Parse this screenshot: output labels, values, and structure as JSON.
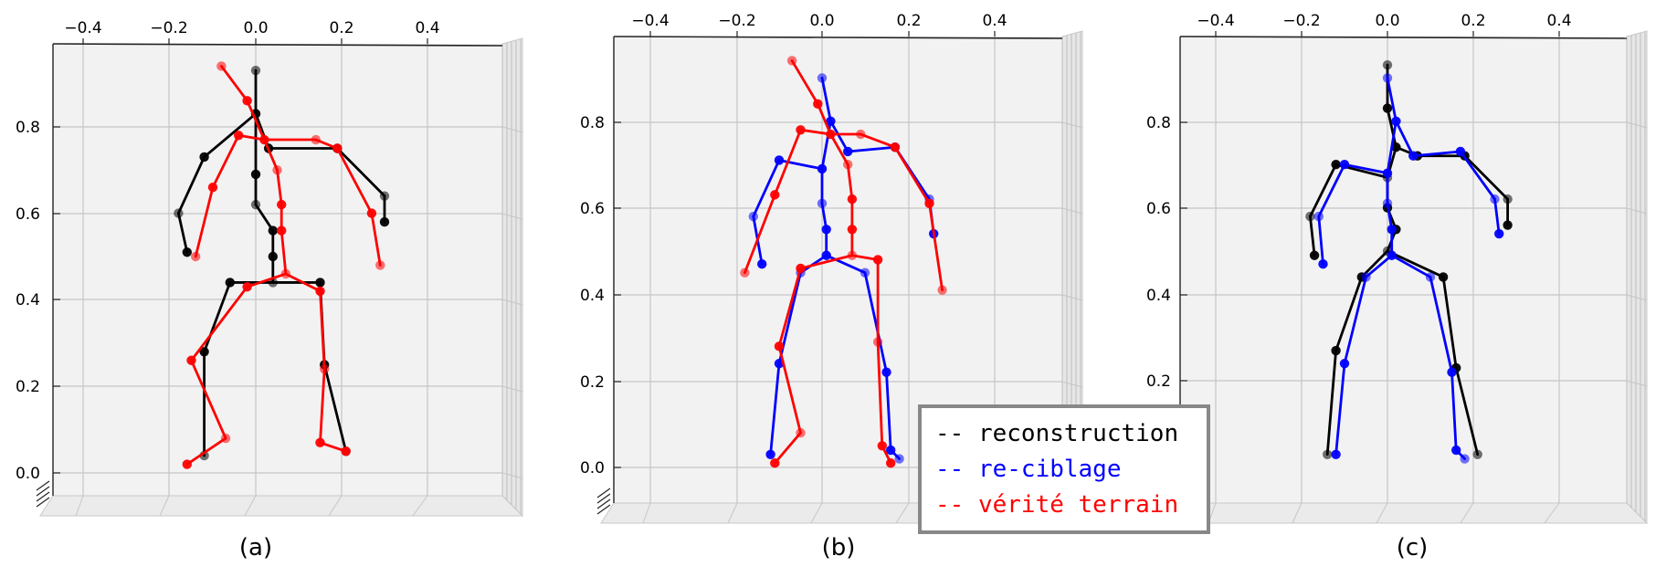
{
  "chart_data": [
    {
      "type": "scatter",
      "subtype": "3d-skeleton",
      "caption": "(a)",
      "xlim": [
        -0.5,
        0.5
      ],
      "zlim": [
        -0.05,
        0.98
      ],
      "x_ticks": [
        "−0.4",
        "−0.2",
        "0.0",
        "0.2",
        "0.4"
      ],
      "z_ticks": [
        "0.0",
        "0.2",
        "0.4",
        "0.6",
        "0.8"
      ],
      "grid": true,
      "series": [
        {
          "color": "#000000",
          "points": [
            [
              0.0,
              0.93
            ],
            [
              0.0,
              0.83
            ],
            [
              0.0,
              0.69
            ],
            [
              0.0,
              0.62
            ],
            [
              0.04,
              0.56
            ],
            [
              0.04,
              0.5
            ],
            [
              0.04,
              0.44
            ],
            [
              -0.06,
              0.44
            ],
            [
              -0.12,
              0.28
            ],
            [
              -0.12,
              0.04
            ],
            [
              0.15,
              0.44
            ],
            [
              0.16,
              0.25
            ],
            [
              0.21,
              0.05
            ],
            [
              0.03,
              0.75
            ],
            [
              0.19,
              0.75
            ],
            [
              0.3,
              0.64
            ],
            [
              0.3,
              0.58
            ],
            [
              -0.12,
              0.73
            ],
            [
              -0.18,
              0.6
            ],
            [
              -0.16,
              0.51
            ]
          ],
          "edges": [
            [
              0,
              1
            ],
            [
              1,
              2
            ],
            [
              2,
              3
            ],
            [
              3,
              4
            ],
            [
              4,
              5
            ],
            [
              5,
              6
            ],
            [
              6,
              7
            ],
            [
              7,
              8
            ],
            [
              8,
              9
            ],
            [
              6,
              10
            ],
            [
              10,
              11
            ],
            [
              11,
              12
            ],
            [
              1,
              13
            ],
            [
              13,
              14
            ],
            [
              14,
              15
            ],
            [
              15,
              16
            ],
            [
              1,
              17
            ],
            [
              17,
              18
            ],
            [
              18,
              19
            ]
          ]
        },
        {
          "color": "#ff0000",
          "points": [
            [
              -0.08,
              0.94
            ],
            [
              -0.02,
              0.86
            ],
            [
              0.02,
              0.77
            ],
            [
              0.05,
              0.7
            ],
            [
              0.06,
              0.62
            ],
            [
              0.06,
              0.56
            ],
            [
              0.07,
              0.46
            ],
            [
              -0.02,
              0.43
            ],
            [
              -0.15,
              0.26
            ],
            [
              -0.07,
              0.08
            ],
            [
              -0.16,
              0.02
            ],
            [
              0.15,
              0.42
            ],
            [
              0.16,
              0.24
            ],
            [
              0.15,
              0.07
            ],
            [
              0.21,
              0.05
            ],
            [
              0.14,
              0.77
            ],
            [
              0.19,
              0.75
            ],
            [
              0.27,
              0.6
            ],
            [
              0.29,
              0.48
            ],
            [
              -0.04,
              0.78
            ],
            [
              -0.1,
              0.66
            ],
            [
              -0.14,
              0.5
            ]
          ],
          "edges": [
            [
              0,
              1
            ],
            [
              1,
              2
            ],
            [
              2,
              3
            ],
            [
              3,
              4
            ],
            [
              4,
              5
            ],
            [
              5,
              6
            ],
            [
              6,
              7
            ],
            [
              7,
              8
            ],
            [
              8,
              9
            ],
            [
              9,
              10
            ],
            [
              6,
              11
            ],
            [
              11,
              12
            ],
            [
              12,
              13
            ],
            [
              13,
              14
            ],
            [
              2,
              15
            ],
            [
              15,
              16
            ],
            [
              16,
              17
            ],
            [
              17,
              18
            ],
            [
              2,
              19
            ],
            [
              19,
              20
            ],
            [
              20,
              21
            ]
          ]
        }
      ]
    },
    {
      "type": "scatter",
      "subtype": "3d-skeleton",
      "caption": "(b)",
      "xlim": [
        -0.5,
        0.5
      ],
      "zlim": [
        -0.05,
        0.98
      ],
      "x_ticks": [
        "−0.4",
        "−0.2",
        "0.0",
        "0.2",
        "0.4"
      ],
      "z_ticks": [
        "0.0",
        "0.2",
        "0.4",
        "0.6",
        "0.8"
      ],
      "grid": true,
      "series": [
        {
          "color": "#0000ff",
          "points": [
            [
              0.0,
              0.9
            ],
            [
              0.02,
              0.8
            ],
            [
              0.0,
              0.69
            ],
            [
              0.0,
              0.61
            ],
            [
              0.01,
              0.55
            ],
            [
              0.01,
              0.49
            ],
            [
              -0.05,
              0.45
            ],
            [
              -0.1,
              0.24
            ],
            [
              -0.12,
              0.03
            ],
            [
              0.1,
              0.45
            ],
            [
              0.15,
              0.22
            ],
            [
              0.16,
              0.04
            ],
            [
              0.18,
              0.02
            ],
            [
              0.06,
              0.73
            ],
            [
              0.17,
              0.74
            ],
            [
              0.25,
              0.62
            ],
            [
              0.26,
              0.54
            ],
            [
              -0.1,
              0.71
            ],
            [
              -0.16,
              0.58
            ],
            [
              -0.14,
              0.47
            ]
          ],
          "edges": [
            [
              0,
              1
            ],
            [
              1,
              2
            ],
            [
              2,
              3
            ],
            [
              3,
              4
            ],
            [
              4,
              5
            ],
            [
              5,
              6
            ],
            [
              6,
              7
            ],
            [
              7,
              8
            ],
            [
              5,
              9
            ],
            [
              9,
              10
            ],
            [
              10,
              11
            ],
            [
              11,
              12
            ],
            [
              1,
              13
            ],
            [
              13,
              14
            ],
            [
              14,
              15
            ],
            [
              15,
              16
            ],
            [
              2,
              17
            ],
            [
              17,
              18
            ],
            [
              18,
              19
            ]
          ]
        },
        {
          "color": "#ff0000",
          "points": [
            [
              -0.07,
              0.94
            ],
            [
              -0.01,
              0.84
            ],
            [
              0.02,
              0.77
            ],
            [
              0.06,
              0.7
            ],
            [
              0.07,
              0.62
            ],
            [
              0.07,
              0.55
            ],
            [
              0.07,
              0.49
            ],
            [
              -0.05,
              0.46
            ],
            [
              -0.1,
              0.28
            ],
            [
              -0.05,
              0.08
            ],
            [
              -0.11,
              0.01
            ],
            [
              0.13,
              0.48
            ],
            [
              0.13,
              0.29
            ],
            [
              0.14,
              0.05
            ],
            [
              0.16,
              0.01
            ],
            [
              0.09,
              0.77
            ],
            [
              0.17,
              0.74
            ],
            [
              0.25,
              0.61
            ],
            [
              0.28,
              0.41
            ],
            [
              -0.05,
              0.78
            ],
            [
              -0.11,
              0.63
            ],
            [
              -0.18,
              0.45
            ]
          ],
          "edges": [
            [
              0,
              1
            ],
            [
              1,
              2
            ],
            [
              2,
              3
            ],
            [
              3,
              4
            ],
            [
              4,
              5
            ],
            [
              5,
              6
            ],
            [
              6,
              7
            ],
            [
              7,
              8
            ],
            [
              8,
              9
            ],
            [
              9,
              10
            ],
            [
              6,
              11
            ],
            [
              11,
              12
            ],
            [
              12,
              13
            ],
            [
              13,
              14
            ],
            [
              2,
              15
            ],
            [
              15,
              16
            ],
            [
              16,
              17
            ],
            [
              17,
              18
            ],
            [
              2,
              19
            ],
            [
              19,
              20
            ],
            [
              20,
              21
            ]
          ]
        }
      ]
    },
    {
      "type": "scatter",
      "subtype": "3d-skeleton",
      "caption": "(c)",
      "xlim": [
        -0.5,
        0.5
      ],
      "zlim": [
        -0.05,
        0.98
      ],
      "x_ticks": [
        "−0.4",
        "−0.2",
        "0.0",
        "0.2",
        "0.4"
      ],
      "z_ticks": [
        "0.2",
        "0.4",
        "0.6",
        "0.8"
      ],
      "grid": true,
      "series": [
        {
          "color": "#000000",
          "points": [
            [
              0.0,
              0.93
            ],
            [
              0.0,
              0.83
            ],
            [
              0.02,
              0.74
            ],
            [
              0.0,
              0.67
            ],
            [
              0.0,
              0.6
            ],
            [
              0.02,
              0.55
            ],
            [
              0.0,
              0.5
            ],
            [
              -0.06,
              0.44
            ],
            [
              -0.12,
              0.27
            ],
            [
              -0.14,
              0.03
            ],
            [
              0.13,
              0.44
            ],
            [
              0.16,
              0.23
            ],
            [
              0.21,
              0.03
            ],
            [
              0.07,
              0.72
            ],
            [
              0.18,
              0.72
            ],
            [
              0.28,
              0.62
            ],
            [
              0.28,
              0.56
            ],
            [
              -0.12,
              0.7
            ],
            [
              -0.18,
              0.58
            ],
            [
              -0.17,
              0.49
            ]
          ],
          "edges": [
            [
              0,
              1
            ],
            [
              1,
              2
            ],
            [
              2,
              3
            ],
            [
              3,
              4
            ],
            [
              4,
              5
            ],
            [
              5,
              6
            ],
            [
              6,
              7
            ],
            [
              7,
              8
            ],
            [
              8,
              9
            ],
            [
              6,
              10
            ],
            [
              10,
              11
            ],
            [
              11,
              12
            ],
            [
              2,
              13
            ],
            [
              13,
              14
            ],
            [
              14,
              15
            ],
            [
              15,
              16
            ],
            [
              3,
              17
            ],
            [
              17,
              18
            ],
            [
              18,
              19
            ]
          ]
        },
        {
          "color": "#0000ff",
          "points": [
            [
              0.0,
              0.9
            ],
            [
              0.02,
              0.8
            ],
            [
              0.0,
              0.68
            ],
            [
              0.0,
              0.61
            ],
            [
              0.01,
              0.55
            ],
            [
              0.01,
              0.49
            ],
            [
              -0.05,
              0.44
            ],
            [
              -0.1,
              0.24
            ],
            [
              -0.12,
              0.03
            ],
            [
              0.1,
              0.44
            ],
            [
              0.15,
              0.22
            ],
            [
              0.16,
              0.04
            ],
            [
              0.18,
              0.02
            ],
            [
              0.06,
              0.72
            ],
            [
              0.17,
              0.73
            ],
            [
              0.25,
              0.62
            ],
            [
              0.26,
              0.54
            ],
            [
              -0.1,
              0.7
            ],
            [
              -0.16,
              0.58
            ],
            [
              -0.15,
              0.47
            ]
          ],
          "edges": [
            [
              0,
              1
            ],
            [
              1,
              2
            ],
            [
              2,
              3
            ],
            [
              3,
              4
            ],
            [
              4,
              5
            ],
            [
              5,
              6
            ],
            [
              6,
              7
            ],
            [
              7,
              8
            ],
            [
              5,
              9
            ],
            [
              9,
              10
            ],
            [
              10,
              11
            ],
            [
              11,
              12
            ],
            [
              1,
              13
            ],
            [
              13,
              14
            ],
            [
              14,
              15
            ],
            [
              15,
              16
            ],
            [
              2,
              17
            ],
            [
              17,
              18
            ],
            [
              18,
              19
            ]
          ]
        }
      ]
    }
  ],
  "legend": {
    "items": [
      {
        "label": "-- reconstruction",
        "color": "#000000"
      },
      {
        "label": "-- re-ciblage",
        "color": "#0000ff"
      },
      {
        "label": "-- vérité terrain",
        "color": "#ff0000"
      }
    ]
  }
}
